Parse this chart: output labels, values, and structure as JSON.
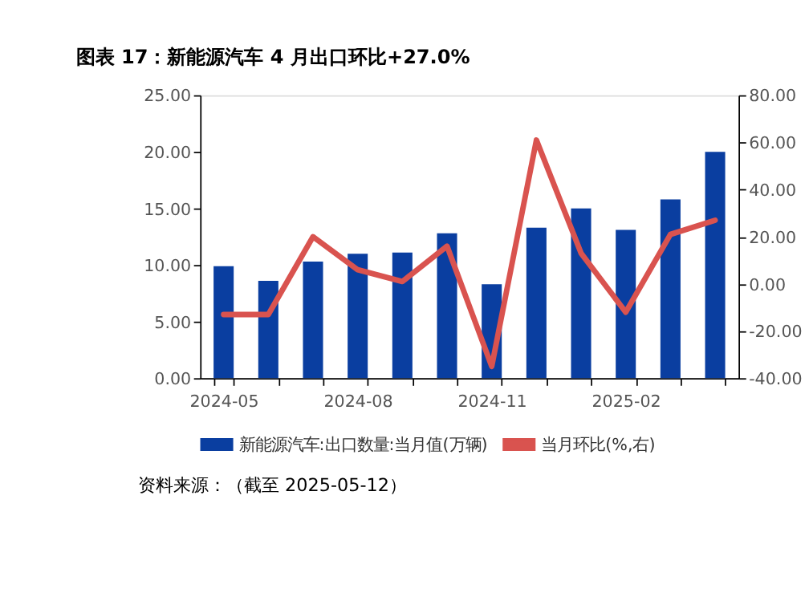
{
  "chart_data": {
    "type": "bar",
    "title": "图表 17：新能源汽车 4 月出口环比+27.0%",
    "categories": [
      "2024-05",
      null,
      null,
      "2024-08",
      null,
      null,
      "2024-11",
      null,
      null,
      "2025-02",
      null,
      null
    ],
    "series": [
      {
        "name": "新能源汽车:出口数量:当月值(万辆)",
        "color": "#0a3ea0",
        "values": [
          9.9,
          8.6,
          10.3,
          11.0,
          11.1,
          12.8,
          8.3,
          13.3,
          15.0,
          13.1,
          15.8,
          20.0
        ]
      },
      {
        "name": "当月环比(%,右)",
        "type": "line",
        "axis": "y2",
        "color": "#d9534f",
        "values": [
          -13,
          -13,
          20,
          6,
          1,
          16,
          -35,
          61,
          13,
          -12,
          21,
          27.0
        ]
      }
    ],
    "ylim": [
      0,
      25
    ],
    "yticks": [
      {
        "value": 0,
        "label": "0.00"
      },
      {
        "value": 5,
        "label": "5.00"
      },
      {
        "value": 10,
        "label": "10.00"
      },
      {
        "value": 15,
        "label": "15.00"
      },
      {
        "value": 20,
        "label": "20.00"
      },
      {
        "value": 25,
        "label": "25.00"
      }
    ],
    "y2lim": [
      -40,
      80
    ],
    "y2ticks": [
      {
        "value": -40,
        "label": "-40.00"
      },
      {
        "value": -20,
        "label": "-20.00"
      },
      {
        "value": 0,
        "label": "0.00"
      },
      {
        "value": 20,
        "label": "20.00"
      },
      {
        "value": 40,
        "label": "40.00"
      },
      {
        "value": 60,
        "label": "60.00"
      },
      {
        "value": 80,
        "label": "80.00"
      }
    ],
    "legend": "bottom",
    "grid": false,
    "marker": "none",
    "line_style": "solid",
    "annotations": [
      "资料来源：（截至 2025-05-12）"
    ]
  }
}
